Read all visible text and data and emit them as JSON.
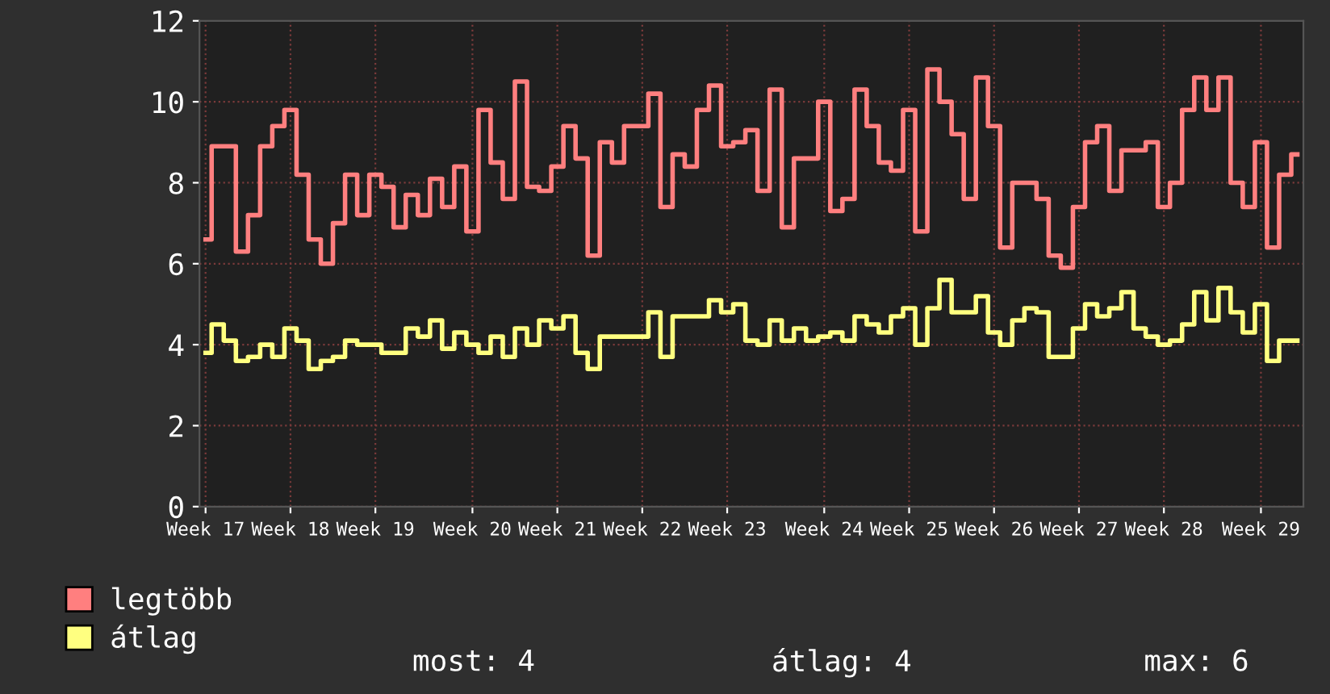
{
  "chart_data": {
    "type": "step",
    "categories": [
      "Week 17",
      null,
      null,
      null,
      null,
      null,
      null,
      "Week 18",
      null,
      null,
      null,
      null,
      null,
      null,
      "Week 19",
      null,
      null,
      null,
      null,
      null,
      null,
      null,
      "Week 20",
      null,
      null,
      null,
      null,
      null,
      null,
      "Week 21",
      null,
      null,
      null,
      null,
      null,
      null,
      "Week 22",
      null,
      null,
      null,
      null,
      null,
      null,
      "Week 23",
      null,
      null,
      null,
      null,
      null,
      null,
      null,
      "Week 24",
      null,
      null,
      null,
      null,
      null,
      null,
      "Week 25",
      null,
      null,
      null,
      null,
      null,
      null,
      "Week 26",
      null,
      null,
      null,
      null,
      null,
      null,
      "Week 27",
      null,
      null,
      null,
      null,
      null,
      null,
      "Week 28",
      null,
      null,
      null,
      null,
      null,
      null,
      null,
      "Week 29",
      null,
      null,
      null
    ],
    "series": [
      {
        "name": "legtöbb",
        "color": "#ff7f7f",
        "values": [
          6.6,
          8.9,
          8.9,
          6.3,
          7.2,
          8.9,
          9.4,
          9.8,
          8.2,
          6.6,
          6.0,
          7.0,
          8.2,
          7.2,
          8.2,
          7.9,
          6.9,
          7.7,
          7.2,
          8.1,
          7.4,
          8.4,
          6.8,
          9.8,
          8.5,
          7.6,
          10.5,
          7.9,
          7.8,
          8.4,
          9.4,
          8.6,
          6.2,
          9.0,
          8.5,
          9.4,
          9.4,
          10.2,
          7.4,
          8.7,
          8.4,
          9.8,
          10.4,
          8.9,
          9.0,
          9.3,
          7.8,
          10.3,
          6.9,
          8.6,
          8.6,
          10.0,
          7.3,
          7.6,
          10.3,
          9.4,
          8.5,
          8.3,
          9.8,
          6.8,
          10.8,
          10.0,
          9.2,
          7.6,
          10.6,
          9.4,
          6.4,
          8.0,
          8.0,
          7.6,
          6.2,
          5.9,
          7.4,
          9.0,
          9.4,
          7.8,
          8.8,
          8.8,
          9.0,
          7.4,
          8.0,
          9.8,
          10.6,
          9.8,
          10.6,
          8.0,
          7.4,
          9.0,
          6.4,
          8.2,
          8.7
        ]
      },
      {
        "name": "átlag",
        "color": "#ffff80",
        "values": [
          3.8,
          4.5,
          4.1,
          3.6,
          3.7,
          4.0,
          3.7,
          4.4,
          4.1,
          3.4,
          3.6,
          3.7,
          4.1,
          4.0,
          4.0,
          3.8,
          3.8,
          4.4,
          4.2,
          4.6,
          3.9,
          4.3,
          4.0,
          3.8,
          4.2,
          3.7,
          4.4,
          4.0,
          4.6,
          4.4,
          4.7,
          3.8,
          3.4,
          4.2,
          4.2,
          4.2,
          4.2,
          4.8,
          3.7,
          4.7,
          4.7,
          4.7,
          5.1,
          4.8,
          5.0,
          4.1,
          4.0,
          4.6,
          4.1,
          4.4,
          4.1,
          4.2,
          4.3,
          4.1,
          4.7,
          4.5,
          4.3,
          4.7,
          4.9,
          4.0,
          4.9,
          5.6,
          4.8,
          4.8,
          5.2,
          4.3,
          4.0,
          4.6,
          4.9,
          4.8,
          3.7,
          3.7,
          4.4,
          5.0,
          4.7,
          4.9,
          5.3,
          4.4,
          4.2,
          4.0,
          4.1,
          4.5,
          5.3,
          4.6,
          5.4,
          4.8,
          4.3,
          5.0,
          3.6,
          4.1,
          4.1
        ]
      }
    ],
    "ylim": [
      0,
      12
    ],
    "yticks": [
      0,
      2,
      4,
      6,
      8,
      10,
      12
    ],
    "grid": true,
    "legend": "bottom",
    "annotations": [
      "most: 4",
      "átlag: 4",
      "max: 6"
    ]
  }
}
